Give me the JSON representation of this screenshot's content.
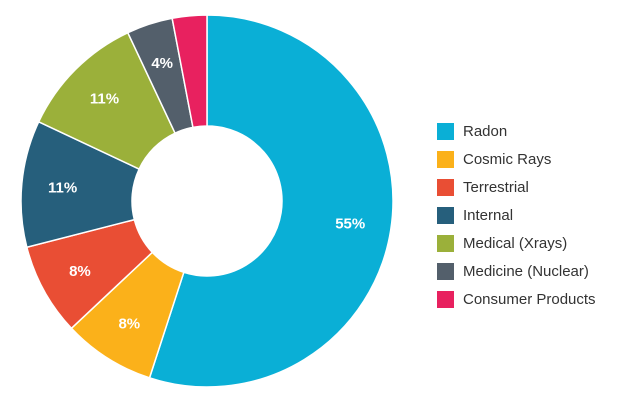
{
  "chart_data": {
    "type": "pie",
    "donut": true,
    "categories": [
      "Radon",
      "Cosmic Rays",
      "Terrestrial",
      "Internal",
      "Medical (Xrays)",
      "Medicine (Nuclear)",
      "Consumer Products"
    ],
    "values": [
      55,
      8,
      8,
      11,
      11,
      4,
      3
    ],
    "labels": [
      "55%",
      "8%",
      "8%",
      "11%",
      "11%",
      "4%",
      ""
    ],
    "colors": [
      "#0aafd6",
      "#fbb11a",
      "#e94e34",
      "#265f7c",
      "#9bb03a",
      "#535f6b",
      "#e8215f"
    ],
    "legend_position": "right"
  }
}
